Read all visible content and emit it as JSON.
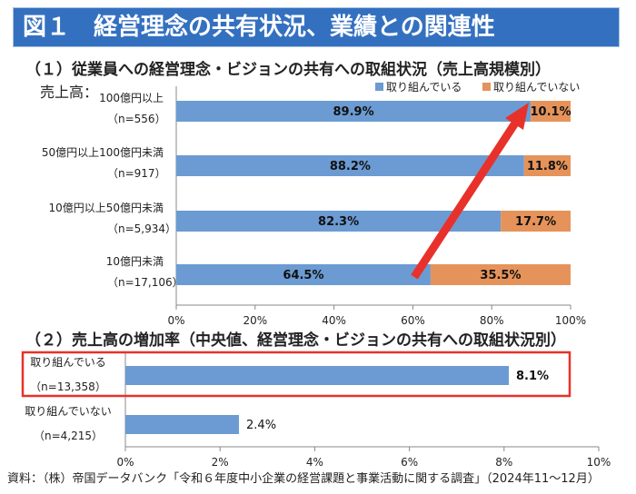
{
  "title": "図１　経営理念の共有状況、業績との関連性",
  "source": "資料：（株）帝国データバンク「令和６年度中小企業の経営課題と事業活動に関する調査」（2024年11～12月）",
  "colors": {
    "blue": "#6b9bd2",
    "orange": "#e5935a",
    "highlight": "#e8312a",
    "title_bg": "#3470c0"
  },
  "chart_data": [
    {
      "type": "bar",
      "orientation": "horizontal-stacked",
      "title": "（１）従業員への経営理念・ビジョンの共有への取組状況（売上高規模別）",
      "ylabel": "売上高：",
      "categories": [
        {
          "label": "100億円以上",
          "n": "（n=556）"
        },
        {
          "label": "50億円以上100億円未満",
          "n": "（n=917）"
        },
        {
          "label": "10億円以上50億円未満",
          "n": "（n=5,934）"
        },
        {
          "label": "10億円未満",
          "n": "（n=17,106）"
        }
      ],
      "series": [
        {
          "name": "取り組んでいる",
          "values": [
            89.9,
            88.2,
            82.3,
            64.5
          ],
          "labels": [
            "89.9%",
            "88.2%",
            "82.3%",
            "64.5%"
          ]
        },
        {
          "name": "取り組んでいない",
          "values": [
            10.1,
            11.8,
            17.7,
            35.5
          ],
          "labels": [
            "10.1%",
            "11.8%",
            "17.7%",
            "35.5%"
          ]
        }
      ],
      "xlim": [
        0,
        100
      ],
      "xticks": [
        "0%",
        "20%",
        "40%",
        "60%",
        "80%",
        "100%"
      ],
      "legend": "top-right",
      "annotation": "red arrow rising from smallest to largest size group"
    },
    {
      "type": "bar",
      "orientation": "horizontal",
      "title": "（２）売上高の増加率（中央値、経営理念・ビジョンの共有への取組状況別）",
      "categories": [
        {
          "label": "取り組んでいる",
          "n": "（n=13,358）"
        },
        {
          "label": "取り組んでいない",
          "n": "（n=4,215）"
        }
      ],
      "values": [
        8.1,
        2.4
      ],
      "labels": [
        "8.1%",
        "2.4%"
      ],
      "xlim": [
        0,
        10
      ],
      "xticks": [
        "0%",
        "2%",
        "4%",
        "6%",
        "8%",
        "10%"
      ],
      "highlight": "取り組んでいる"
    }
  ]
}
